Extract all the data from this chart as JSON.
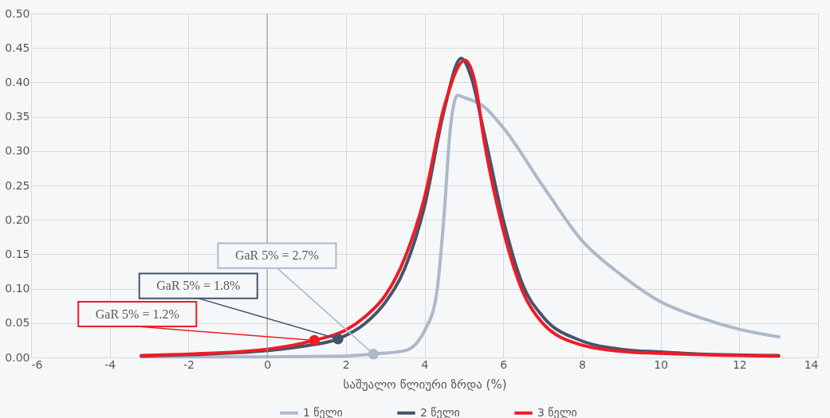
{
  "chart_data": {
    "type": "line",
    "xlabel": "საშუალო წლიური ზრდა (%)",
    "xlim": [
      -6,
      14
    ],
    "xticks": [
      -6,
      -4,
      -2,
      0,
      2,
      4,
      6,
      8,
      10,
      12,
      14
    ],
    "ylim": [
      0,
      0.5
    ],
    "yticks": [
      {
        "value": 0,
        "label": "0.00"
      },
      {
        "value": 0.05,
        "label": "0.05"
      },
      {
        "value": 0.1,
        "label": "0.10"
      },
      {
        "value": 0.15,
        "label": "0.15"
      },
      {
        "value": 0.2,
        "label": "0.20"
      },
      {
        "value": 0.25,
        "label": "0.25"
      },
      {
        "value": 0.3,
        "label": "0.30"
      },
      {
        "value": 0.35,
        "label": "0.35"
      },
      {
        "value": 0.4,
        "label": "0.40"
      },
      {
        "value": 0.45,
        "label": "0.45"
      },
      {
        "value": 0.5,
        "label": "0.50"
      }
    ],
    "grid": true,
    "legend": "bottom",
    "marker": "none",
    "line_style": "solid",
    "ref_lines": [
      {
        "axis": "x",
        "value": 0,
        "color": "#909090"
      }
    ],
    "series": [
      {
        "name": "1 წელი",
        "color": "#adb9ca",
        "x": [
          -3.2,
          0,
          2,
          2.7,
          3.5,
          4,
          4.3,
          4.5,
          4.65,
          4.84,
          5,
          5.5,
          6,
          7,
          8,
          9,
          10,
          11,
          12,
          13
        ],
        "values": [
          0.001,
          0.001,
          0.002,
          0.005,
          0.01,
          0.039,
          0.09,
          0.21,
          0.33,
          0.381,
          0.378,
          0.365,
          0.334,
          0.25,
          0.17,
          0.12,
          0.081,
          0.058,
          0.041,
          0.03
        ]
      },
      {
        "name": "2 წელი",
        "color": "#44546a",
        "x": [
          -3.2,
          -2,
          0,
          1,
          1.8,
          2.5,
          3,
          3.5,
          4,
          4.5,
          4.93,
          5.2,
          5.5,
          6,
          6.5,
          7,
          8,
          9,
          10,
          11,
          13
        ],
        "values": [
          0.002,
          0.004,
          0.01,
          0.017,
          0.027,
          0.05,
          0.08,
          0.13,
          0.22,
          0.36,
          0.435,
          0.405,
          0.33,
          0.2,
          0.105,
          0.06,
          0.024,
          0.012,
          0.008,
          0.005,
          0.003
        ]
      },
      {
        "name": "3 წელი",
        "color": "#ee1c25",
        "x": [
          -3.2,
          -2,
          0,
          1.2,
          2,
          2.5,
          3,
          3.5,
          4,
          4.5,
          5.03,
          5.3,
          5.5,
          6,
          6.5,
          7,
          8,
          9,
          10,
          13
        ],
        "values": [
          0.003,
          0.005,
          0.012,
          0.025,
          0.04,
          0.06,
          0.09,
          0.145,
          0.233,
          0.365,
          0.432,
          0.395,
          0.32,
          0.185,
          0.095,
          0.05,
          0.018,
          0.009,
          0.006,
          0.002
        ]
      },
      {
        "type": "scatter",
        "marker": "circle",
        "color": "#adb9ca",
        "x": [
          2.7
        ],
        "values": [
          0.005
        ]
      },
      {
        "type": "scatter",
        "marker": "circle",
        "color": "#44546a",
        "x": [
          1.8
        ],
        "values": [
          0.027
        ]
      },
      {
        "type": "scatter",
        "marker": "circle",
        "color": "#ee1c25",
        "x": [
          1.2
        ],
        "values": [
          0.025
        ]
      }
    ],
    "annotations": [
      {
        "text": "GaR 5% = 2.7%",
        "x": 2.7,
        "y": 0.005
      },
      {
        "text": "GaR 5% = 1.8%",
        "x": 1.8,
        "y": 0.027
      },
      {
        "text": "GaR 5% = 1.2%",
        "x": 1.2,
        "y": 0.025
      }
    ]
  }
}
